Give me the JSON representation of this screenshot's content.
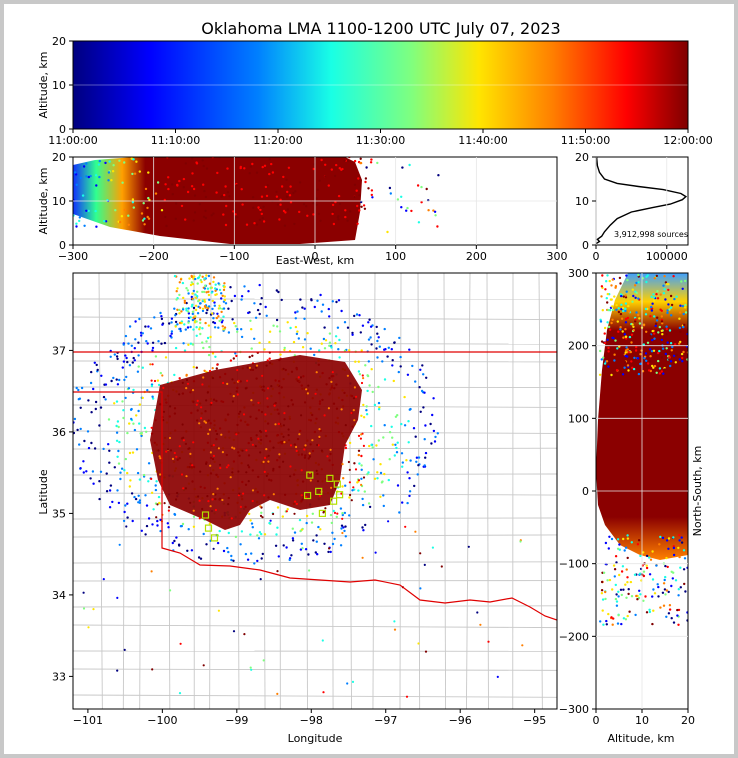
{
  "chart_data": [
    {
      "type": "heatmap",
      "panel": "time-altitude",
      "title": "Oklahoma LMA 1100-1200 UTC July 07, 2023",
      "xlabel": "",
      "ylabel": "Altitude, km",
      "ylim": [
        0,
        20
      ],
      "yticks": [
        "0",
        "10",
        "20"
      ],
      "xticks": [
        "11:00:00",
        "11:10:00",
        "11:20:00",
        "11:30:00",
        "11:40:00",
        "11:50:00",
        "12:00:00"
      ],
      "colormap": [
        "#00007f",
        "#0000ff",
        "#007fff",
        "#19ffe5",
        "#7fff7f",
        "#ffe500",
        "#ff7f00",
        "#ff0000",
        "#7f0000"
      ],
      "grid": true
    },
    {
      "type": "scatter",
      "panel": "east-west-altitude",
      "xlabel": "East-West, km",
      "ylabel": "Altitude, km",
      "xlim": [
        -300,
        300
      ],
      "ylim": [
        0,
        20
      ],
      "xticks": [
        "−300",
        "−200",
        "−100",
        "0",
        "100",
        "200",
        "300"
      ],
      "yticks": [
        "0",
        "10",
        "20"
      ],
      "dense_region_x": [
        -250,
        60
      ],
      "grid": true
    },
    {
      "type": "line",
      "panel": "altitude-histogram",
      "xlim": [
        0,
        130000
      ],
      "ylim": [
        0,
        20
      ],
      "xticks": [
        "0",
        "100000"
      ],
      "yticks": [
        "0",
        "10",
        "20"
      ],
      "annotation": "3,912,998 sources",
      "points": [
        [
          0,
          0.3
        ],
        [
          5000,
          0.8
        ],
        [
          2000,
          1.3
        ],
        [
          8000,
          2.0
        ],
        [
          12000,
          3.0
        ],
        [
          20000,
          4.5
        ],
        [
          30000,
          6.0
        ],
        [
          50000,
          7.5
        ],
        [
          80000,
          8.5
        ],
        [
          105000,
          9.3
        ],
        [
          122000,
          10.3
        ],
        [
          127000,
          11.0
        ],
        [
          120000,
          11.7
        ],
        [
          95000,
          12.6
        ],
        [
          60000,
          13.3
        ],
        [
          30000,
          14.0
        ],
        [
          12000,
          15.0
        ],
        [
          5000,
          16.5
        ],
        [
          2000,
          18.0
        ],
        [
          800,
          20.0
        ]
      ],
      "grid": true
    },
    {
      "type": "scatter",
      "panel": "plan-view",
      "xlabel": "Longitude",
      "ylabel": "Latitude",
      "xlim": [
        -101.2,
        -94.7
      ],
      "ylim": [
        32.6,
        37.95
      ],
      "xticks": [
        "−101",
        "−100",
        "−99",
        "−98",
        "−97",
        "−96",
        "−95"
      ],
      "yticks": [
        "33",
        "34",
        "35",
        "36",
        "37"
      ],
      "station_markers": [
        [
          -99.42,
          34.98
        ],
        [
          -99.38,
          34.82
        ],
        [
          -99.3,
          34.7
        ],
        [
          -98.05,
          35.22
        ],
        [
          -98.02,
          35.47
        ],
        [
          -97.9,
          35.27
        ],
        [
          -97.75,
          35.43
        ],
        [
          -97.65,
          35.36
        ],
        [
          -97.62,
          35.23
        ],
        [
          -97.7,
          35.15
        ],
        [
          -97.85,
          35.0
        ]
      ],
      "grid": true
    },
    {
      "type": "scatter",
      "panel": "altitude-north-south",
      "xlabel": "Altitude, km",
      "ylabel": "North-South, km",
      "xlim": [
        0,
        20
      ],
      "ylim": [
        -300,
        300
      ],
      "xticks": [
        "0",
        "10",
        "20"
      ],
      "yticks": [
        "−300",
        "−200",
        "−100",
        "0",
        "100",
        "200",
        "300"
      ],
      "grid": true
    }
  ]
}
